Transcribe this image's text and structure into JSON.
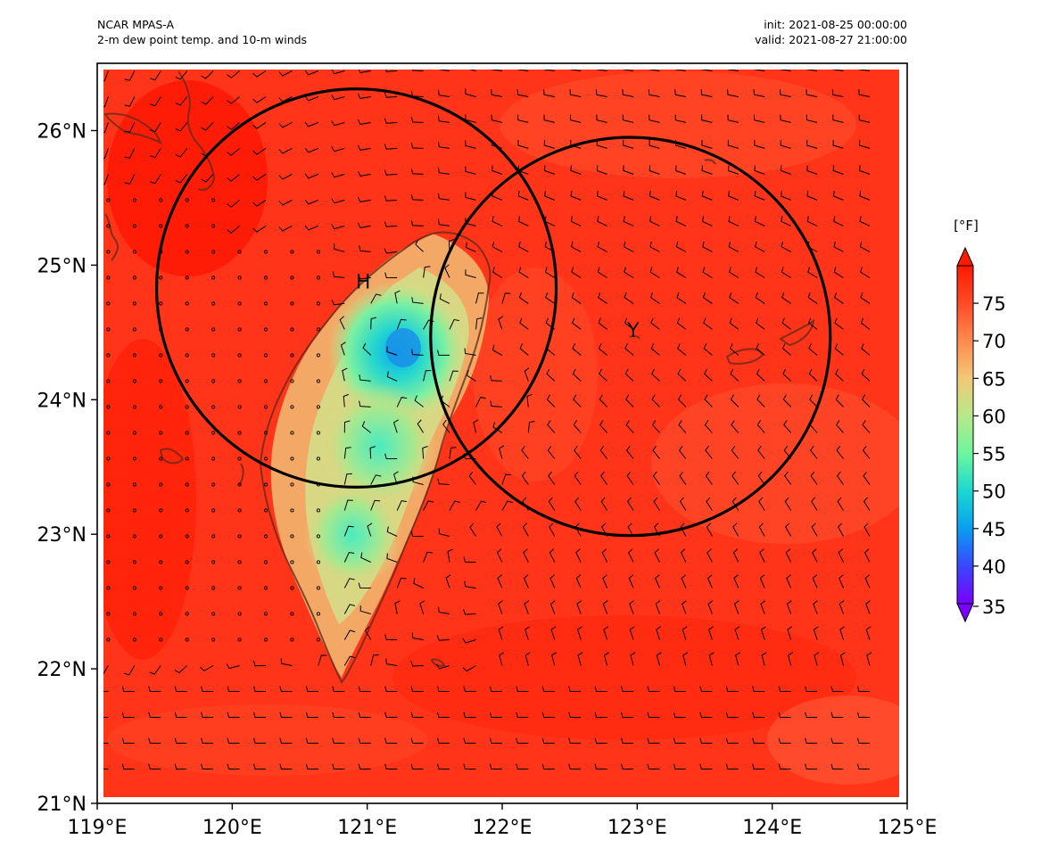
{
  "header": {
    "left_line1": "NCAR MPAS-A",
    "left_line2": "2-m dew point temp. and 10-m winds",
    "right_line1": "init: 2021-08-25 00:00:00",
    "right_line2": "valid: 2021-08-27 21:00:00"
  },
  "map": {
    "lon_range": [
      119,
      125
    ],
    "lat_range": [
      21,
      26.5
    ],
    "lon_ticks": [
      {
        "value": 119,
        "label": "119°E"
      },
      {
        "value": 120,
        "label": "120°E"
      },
      {
        "value": 121,
        "label": "121°E"
      },
      {
        "value": 122,
        "label": "122°E"
      },
      {
        "value": 123,
        "label": "123°E"
      },
      {
        "value": 124,
        "label": "124°E"
      },
      {
        "value": 125,
        "label": "125°E"
      }
    ],
    "lat_ticks": [
      {
        "value": 21,
        "label": "21°N"
      },
      {
        "value": 22,
        "label": "22°N"
      },
      {
        "value": 23,
        "label": "23°N"
      },
      {
        "value": 24,
        "label": "24°N"
      },
      {
        "value": 25,
        "label": "25°N"
      },
      {
        "value": 26,
        "label": "26°N"
      }
    ],
    "centers": [
      {
        "label": "H",
        "lon": 120.97,
        "lat": 24.88
      },
      {
        "label": "Y",
        "lon": 122.97,
        "lat": 24.52
      }
    ],
    "circles": [
      {
        "center_lon": 120.92,
        "center_lat": 24.83,
        "radius_deg": 1.48
      },
      {
        "center_lon": 122.95,
        "center_lat": 24.47,
        "radius_deg": 1.48
      }
    ]
  },
  "colorbar": {
    "unit": "[°F]",
    "min": 35,
    "max": 80,
    "ticks": [
      {
        "value": 35,
        "label": "35"
      },
      {
        "value": 40,
        "label": "40"
      },
      {
        "value": 45,
        "label": "45"
      },
      {
        "value": 50,
        "label": "50"
      },
      {
        "value": 55,
        "label": "55"
      },
      {
        "value": 60,
        "label": "60"
      },
      {
        "value": 65,
        "label": "65"
      },
      {
        "value": 70,
        "label": "70"
      },
      {
        "value": 75,
        "label": "75"
      }
    ],
    "colors": [
      "#7a00ff",
      "#3a47ff",
      "#0a9ef0",
      "#1ad8d0",
      "#6ef59e",
      "#b8e88a",
      "#f2c878",
      "#ff8a50",
      "#ff4a28",
      "#ff1a00"
    ]
  }
}
